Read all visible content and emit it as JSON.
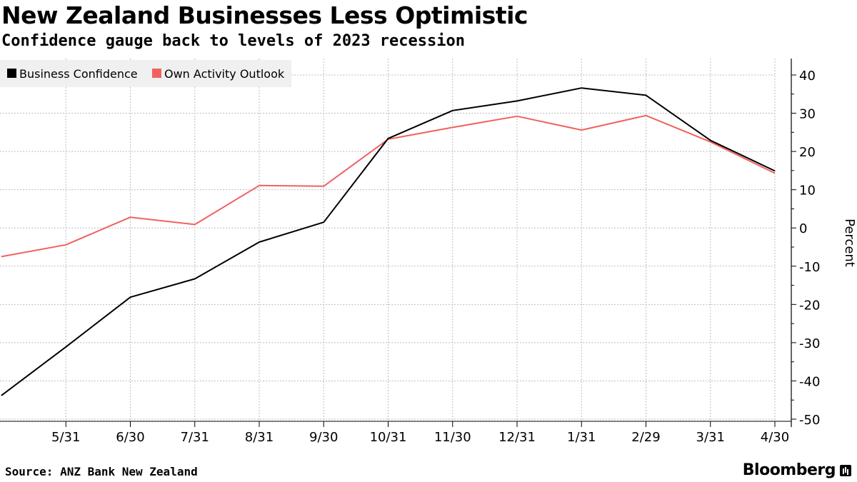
{
  "header": {
    "title": "New Zealand Businesses Less Optimistic",
    "subtitle": "Confidence gauge back to levels of 2023 recession"
  },
  "footer": {
    "source": "Source: ANZ Bank New Zealand",
    "brand": "Bloomberg"
  },
  "colors": {
    "business_confidence": "#000000",
    "own_activity_outlook": "#f0625f",
    "grid": "#bdbdbd",
    "legend_bg": "#f0f0f0"
  },
  "chart_data": {
    "type": "line",
    "x": [
      "4/30",
      "5/31",
      "6/30",
      "7/31",
      "8/31",
      "9/30",
      "10/31",
      "11/30",
      "12/31",
      "1/31",
      "2/29",
      "3/31",
      "4/30"
    ],
    "x_tick_labels": [
      "5/31",
      "6/30",
      "7/31",
      "8/31",
      "9/30",
      "10/31",
      "11/30",
      "12/31",
      "1/31",
      "2/29",
      "3/31",
      "4/30"
    ],
    "series": [
      {
        "name": "Business Confidence",
        "color": "#000000",
        "values": [
          -43.8,
          -31.1,
          -18.1,
          -13.3,
          -3.7,
          1.5,
          23.4,
          30.7,
          33.2,
          36.6,
          34.7,
          22.9,
          14.9
        ]
      },
      {
        "name": "Own Activity Outlook",
        "color": "#f0625f",
        "values": [
          -7.5,
          -4.4,
          2.8,
          0.9,
          11.1,
          10.9,
          23.2,
          26.3,
          29.2,
          25.6,
          29.4,
          22.5,
          14.3
        ]
      }
    ],
    "ylabel": "Percent",
    "ylim": [
      -50,
      40
    ],
    "yticks": [
      "40",
      "30",
      "20",
      "10",
      "0",
      "-10",
      "-20",
      "-30",
      "-40",
      "-50"
    ],
    "grid": true,
    "legend_position": "top-left",
    "y_axis_side": "right"
  }
}
